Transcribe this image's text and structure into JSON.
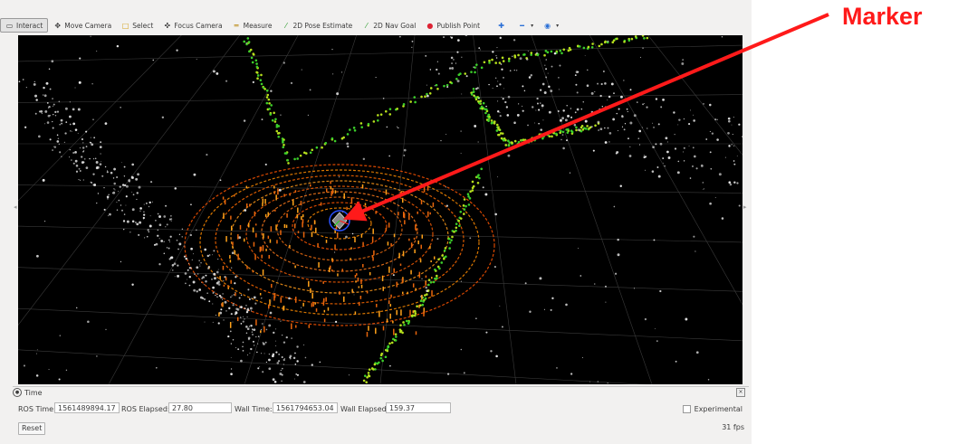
{
  "toolbar": {
    "tools": [
      {
        "label": "Interact",
        "icon": "cursor-icon",
        "active": true
      },
      {
        "label": "Move Camera",
        "icon": "move-camera-icon"
      },
      {
        "label": "Select",
        "icon": "select-icon"
      },
      {
        "label": "Focus Camera",
        "icon": "focus-camera-icon"
      },
      {
        "label": "Measure",
        "icon": "measure-icon"
      },
      {
        "label": "2D Pose Estimate",
        "icon": "pose-estimate-icon"
      },
      {
        "label": "2D Nav Goal",
        "icon": "nav-goal-icon"
      },
      {
        "label": "Publish Point",
        "icon": "publish-point-icon"
      }
    ],
    "extra_icons": [
      "plus-icon",
      "minus-icon",
      "eye-icon"
    ]
  },
  "time_panel": {
    "title": "Time",
    "ros_time_label": "ROS Time:",
    "ros_time": "1561489894.17",
    "ros_elapsed_label": "ROS Elapsed:",
    "ros_elapsed": "27.80",
    "wall_time_label": "Wall Time:",
    "wall_time": "1561794653.04",
    "wall_elapsed_label": "Wall Elapsed:",
    "wall_elapsed": "159.37",
    "experimental_label": "Experimental"
  },
  "status": {
    "reset_label": "Reset",
    "fps": "31 fps"
  },
  "annotation": {
    "label": "Marker",
    "color": "#ff1a1a"
  },
  "colors": {
    "viewport_bg": "#000000",
    "panel_bg": "#f2f1f0"
  }
}
